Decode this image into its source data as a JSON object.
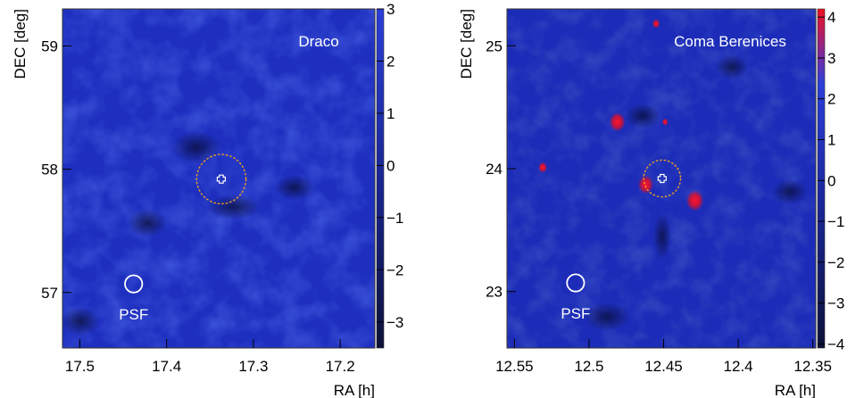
{
  "chart_data": [
    {
      "type": "heatmap",
      "title": "Draco",
      "xlabel": "RA [h]",
      "ylabel": "DEC [deg]",
      "xlim": [
        17.52,
        17.16
      ],
      "ylim": [
        56.55,
        59.3
      ],
      "x_ticks": [
        {
          "value": 17.5,
          "label": "17.5"
        },
        {
          "value": 17.4,
          "label": "17.4"
        },
        {
          "value": 17.3,
          "label": "17.3"
        },
        {
          "value": 17.2,
          "label": "17.2"
        }
      ],
      "y_ticks": [
        {
          "value": 57,
          "label": "57"
        },
        {
          "value": 58,
          "label": "58"
        },
        {
          "value": 59,
          "label": "59"
        }
      ],
      "colorbar": {
        "range": [
          -3.5,
          3
        ],
        "ticks": [
          {
            "value": 3,
            "label": "3"
          },
          {
            "value": 2,
            "label": "2"
          },
          {
            "value": 1,
            "label": "1"
          },
          {
            "value": 0,
            "label": "0"
          },
          {
            "value": -1,
            "label": "−1"
          },
          {
            "value": -2,
            "label": "−2"
          },
          {
            "value": -3,
            "label": "−3"
          }
        ]
      },
      "hotspots": [],
      "target": {
        "ra": 17.337,
        "dec": 57.92,
        "radius_deg": 0.2
      },
      "psf": {
        "ra": 17.438,
        "dec": 57.07,
        "radius_deg": 0.07,
        "label": "PSF"
      }
    },
    {
      "type": "heatmap",
      "title": "Coma Berenices",
      "xlabel": "RA [h]",
      "ylabel": "DEC [deg]",
      "xlim": [
        12.555,
        12.348
      ],
      "ylim": [
        22.54,
        25.3
      ],
      "x_ticks": [
        {
          "value": 12.55,
          "label": "12.55"
        },
        {
          "value": 12.5,
          "label": "12.5"
        },
        {
          "value": 12.45,
          "label": "12.45"
        },
        {
          "value": 12.4,
          "label": "12.4"
        },
        {
          "value": 12.35,
          "label": "12.35"
        }
      ],
      "y_ticks": [
        {
          "value": 23,
          "label": "23"
        },
        {
          "value": 24,
          "label": "24"
        },
        {
          "value": 25,
          "label": "25"
        }
      ],
      "colorbar": {
        "range": [
          -4.1,
          4.2
        ],
        "ticks": [
          {
            "value": 4,
            "label": "4"
          },
          {
            "value": 3,
            "label": "3"
          },
          {
            "value": 2,
            "label": "2"
          },
          {
            "value": 1,
            "label": "1"
          },
          {
            "value": 0,
            "label": "0"
          },
          {
            "value": -1,
            "label": "−1"
          },
          {
            "value": -2,
            "label": "−2"
          },
          {
            "value": -3,
            "label": "−3"
          },
          {
            "value": -4,
            "label": "−4"
          }
        ]
      },
      "hotspots": [
        {
          "ra": 12.481,
          "dec": 24.38,
          "value": 3.5
        },
        {
          "ra": 12.462,
          "dec": 23.87,
          "value": 3.4
        },
        {
          "ra": 12.429,
          "dec": 23.74,
          "value": 3.7
        },
        {
          "ra": 12.531,
          "dec": 24.01,
          "value": 2.5
        },
        {
          "ra": 12.449,
          "dec": 24.38,
          "value": 2.1
        },
        {
          "ra": 12.455,
          "dec": 25.18,
          "value": 2.3
        }
      ],
      "target": {
        "ra": 12.451,
        "dec": 23.92,
        "radius_deg": 0.15
      },
      "psf": {
        "ra": 12.509,
        "dec": 23.07,
        "radius_deg": 0.07,
        "label": "PSF"
      }
    }
  ],
  "colors": {
    "map_base": "#1e2fbf",
    "map_dark": "#10186a",
    "hot": "#e8102a",
    "target_circle": "#f0a020",
    "psf_circle": "#ffffff",
    "title_text": "#ffffff"
  }
}
